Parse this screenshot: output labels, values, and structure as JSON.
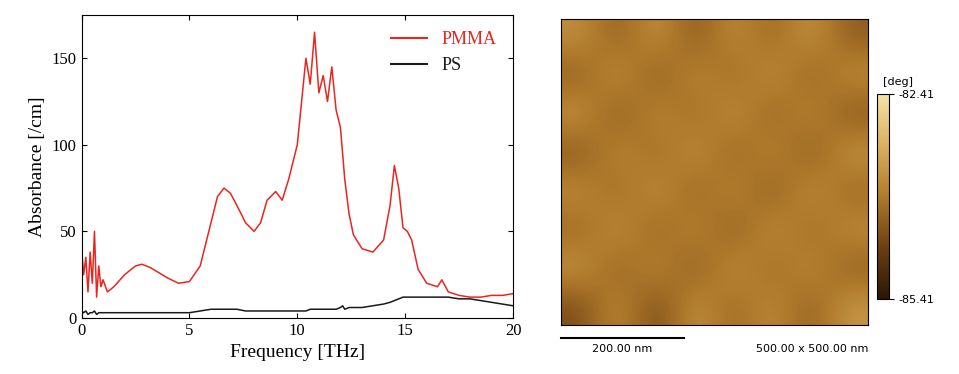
{
  "chart_data": [
    {
      "type": "line",
      "x_label": "Frequency [THz]",
      "y_label": "Absorbance [/cm]",
      "x": [
        0,
        0.1,
        0.2,
        0.3,
        0.4,
        0.5,
        0.6,
        0.7,
        0.8,
        0.9,
        1.0,
        1.2,
        1.5,
        2.0,
        2.5,
        2.8,
        3.2,
        3.6,
        4.0,
        4.5,
        5.0,
        5.5,
        6.0,
        6.3,
        6.6,
        6.9,
        7.2,
        7.6,
        8.0,
        8.3,
        8.6,
        9.0,
        9.3,
        9.6,
        10.0,
        10.2,
        10.4,
        10.6,
        10.8,
        11.0,
        11.2,
        11.4,
        11.6,
        11.8,
        12.0,
        12.1,
        12.2,
        12.4,
        12.6,
        13.0,
        13.5,
        14.0,
        14.3,
        14.5,
        14.7,
        14.9,
        15.1,
        15.3,
        15.6,
        16.0,
        16.5,
        16.7,
        17.0,
        17.5,
        18.0,
        18.5,
        19.0,
        19.5,
        20.0
      ],
      "series": [
        {
          "name": "PMMA",
          "color": "#e8261f",
          "values": [
            40,
            25,
            35,
            15,
            38,
            20,
            50,
            12,
            30,
            18,
            22,
            15,
            18,
            25,
            30,
            31,
            29,
            26,
            23,
            20,
            21,
            30,
            55,
            70,
            75,
            72,
            65,
            55,
            50,
            55,
            68,
            73,
            68,
            80,
            100,
            125,
            150,
            135,
            165,
            130,
            140,
            125,
            145,
            120,
            110,
            95,
            80,
            60,
            48,
            40,
            38,
            45,
            65,
            88,
            75,
            52,
            50,
            45,
            28,
            20,
            18,
            22,
            15,
            13,
            12,
            12,
            13,
            13,
            14
          ]
        },
        {
          "name": "PS",
          "color": "#1a1a1a",
          "values": [
            4,
            3,
            4,
            2,
            3,
            3,
            4,
            2,
            3,
            3,
            3,
            3,
            3,
            3,
            3,
            3,
            3,
            3,
            3,
            3,
            3,
            4,
            5,
            5,
            5,
            5,
            5,
            4,
            4,
            4,
            4,
            4,
            4,
            4,
            4,
            4,
            4,
            5,
            5,
            5,
            5,
            5,
            5,
            5,
            6,
            7,
            5,
            6,
            6,
            6,
            7,
            8,
            9,
            10,
            11,
            12,
            12,
            12,
            12,
            12,
            12,
            12,
            12,
            11,
            11,
            10,
            9,
            8,
            7
          ]
        }
      ],
      "xlim": [
        0,
        20
      ],
      "xticks": [
        0,
        5,
        10,
        15,
        20
      ],
      "ylim": [
        0,
        175
      ],
      "yticks": [
        0,
        50,
        100,
        150
      ],
      "legend": "upper right"
    },
    {
      "type": "heatmap",
      "cells": [
        [
          -83.6,
          -84.3,
          -83.5,
          -84.4,
          -83.6,
          -84.2,
          -83.5,
          -84.3
        ],
        [
          -84.3,
          -83.5,
          -84.4,
          -83.6,
          -84.2,
          -83.5,
          -84.3,
          -83.6
        ],
        [
          -83.5,
          -84.4,
          -83.6,
          -84.2,
          -83.5,
          -84.3,
          -83.6,
          -84.4
        ],
        [
          -84.4,
          -83.6,
          -84.2,
          -83.5,
          -84.3,
          -83.6,
          -84.4,
          -83.5
        ],
        [
          -83.6,
          -84.2,
          -83.5,
          -84.3,
          -83.6,
          -84.4,
          -83.5,
          -84.2
        ],
        [
          -84.2,
          -83.5,
          -84.3,
          -83.6,
          -84.4,
          -83.5,
          -84.2,
          -83.6
        ],
        [
          -83.5,
          -84.3,
          -83.6,
          -84.4,
          -83.5,
          -84.2,
          -83.6,
          -84.3
        ],
        [
          -84.5,
          -83.6,
          -84.6,
          -83.5,
          -84.2,
          -83.6,
          -84.3,
          -83.5
        ]
      ],
      "xlim": [
        0,
        500
      ],
      "ylim": [
        0,
        500
      ],
      "tick_labels": false,
      "colorbar_range": [
        -85.41,
        -82.41
      ],
      "colorbar_ticks": [
        -85.41,
        -82.41
      ],
      "colorbar_label": "[deg]",
      "scale_bar": {
        "length": 200,
        "label": "200.00 nm"
      },
      "size_label": "500.00 x 500.00 nm"
    }
  ]
}
